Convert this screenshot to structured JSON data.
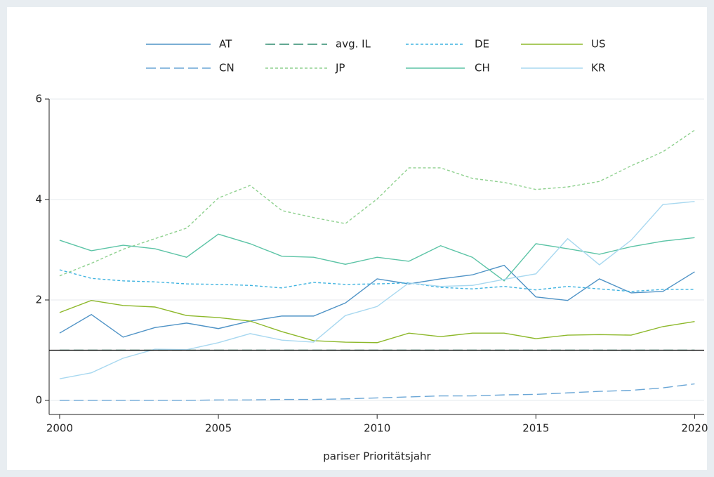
{
  "chart_data": {
    "type": "line",
    "x_label": "pariser Prioritätsjahr",
    "x": [
      2000,
      2001,
      2002,
      2003,
      2004,
      2005,
      2006,
      2007,
      2008,
      2009,
      2010,
      2011,
      2012,
      2013,
      2014,
      2015,
      2016,
      2017,
      2018,
      2019,
      2020
    ],
    "xlim": [
      1999.67,
      2020.3
    ],
    "xticks": [
      2000,
      2005,
      2010,
      2015,
      2020
    ],
    "ylim": [
      -0.28,
      6
    ],
    "yticks": [
      0,
      2,
      4,
      6
    ],
    "grid": true,
    "hline": 1,
    "hline_color": "#000000",
    "series": [
      {
        "name": "AT",
        "color": "#4f93c6",
        "dash": "solid",
        "values": [
          1.34,
          1.71,
          1.26,
          1.45,
          1.54,
          1.43,
          1.58,
          1.68,
          1.68,
          1.94,
          2.42,
          2.32,
          2.42,
          2.5,
          2.69,
          2.06,
          1.99,
          2.42,
          2.14,
          2.17,
          2.56
        ]
      },
      {
        "name": "avg. IL",
        "color": "#2e8b6e",
        "dash": "long",
        "values": [
          1,
          1,
          1,
          1,
          1,
          1,
          1,
          1,
          1,
          1,
          1,
          1,
          1,
          1,
          1,
          1,
          1,
          1,
          1,
          1,
          1
        ]
      },
      {
        "name": "DE",
        "color": "#3fb3e0",
        "dash": "short",
        "values": [
          2.6,
          2.43,
          2.38,
          2.36,
          2.32,
          2.31,
          2.29,
          2.24,
          2.35,
          2.31,
          2.32,
          2.34,
          2.25,
          2.22,
          2.27,
          2.2,
          2.27,
          2.22,
          2.17,
          2.21,
          2.21
        ]
      },
      {
        "name": "US",
        "color": "#8db82a",
        "dash": "solid",
        "values": [
          1.75,
          1.99,
          1.89,
          1.86,
          1.69,
          1.65,
          1.58,
          1.37,
          1.19,
          1.16,
          1.15,
          1.34,
          1.27,
          1.34,
          1.34,
          1.23,
          1.3,
          1.31,
          1.3,
          1.47,
          1.57
        ]
      },
      {
        "name": "CN",
        "color": "#6aa6d6",
        "dash": "long",
        "values": [
          0,
          0,
          0,
          0,
          0,
          0.01,
          0.01,
          0.02,
          0.02,
          0.03,
          0.05,
          0.07,
          0.09,
          0.09,
          0.11,
          0.12,
          0.15,
          0.18,
          0.2,
          0.25,
          0.33
        ]
      },
      {
        "name": "JP",
        "color": "#8fd18f",
        "dash": "short",
        "values": [
          2.48,
          2.73,
          3.01,
          3.22,
          3.43,
          4.03,
          4.28,
          3.78,
          3.64,
          3.52,
          4.01,
          4.63,
          4.63,
          4.42,
          4.34,
          4.2,
          4.25,
          4.36,
          4.67,
          4.95,
          5.38
        ]
      },
      {
        "name": "CH",
        "color": "#5cc4a6",
        "dash": "solid",
        "values": [
          3.19,
          2.98,
          3.09,
          3.02,
          2.85,
          3.31,
          3.12,
          2.87,
          2.85,
          2.71,
          2.85,
          2.77,
          3.08,
          2.85,
          2.38,
          3.12,
          3.02,
          2.91,
          3.06,
          3.17,
          3.24
        ]
      },
      {
        "name": "KR",
        "color": "#a8d8f0",
        "dash": "solid",
        "values": [
          0.43,
          0.55,
          0.84,
          1.02,
          1.01,
          1.15,
          1.33,
          1.2,
          1.16,
          1.69,
          1.87,
          2.34,
          2.27,
          2.29,
          2.41,
          2.52,
          3.22,
          2.7,
          3.19,
          3.9,
          3.96
        ]
      }
    ]
  }
}
